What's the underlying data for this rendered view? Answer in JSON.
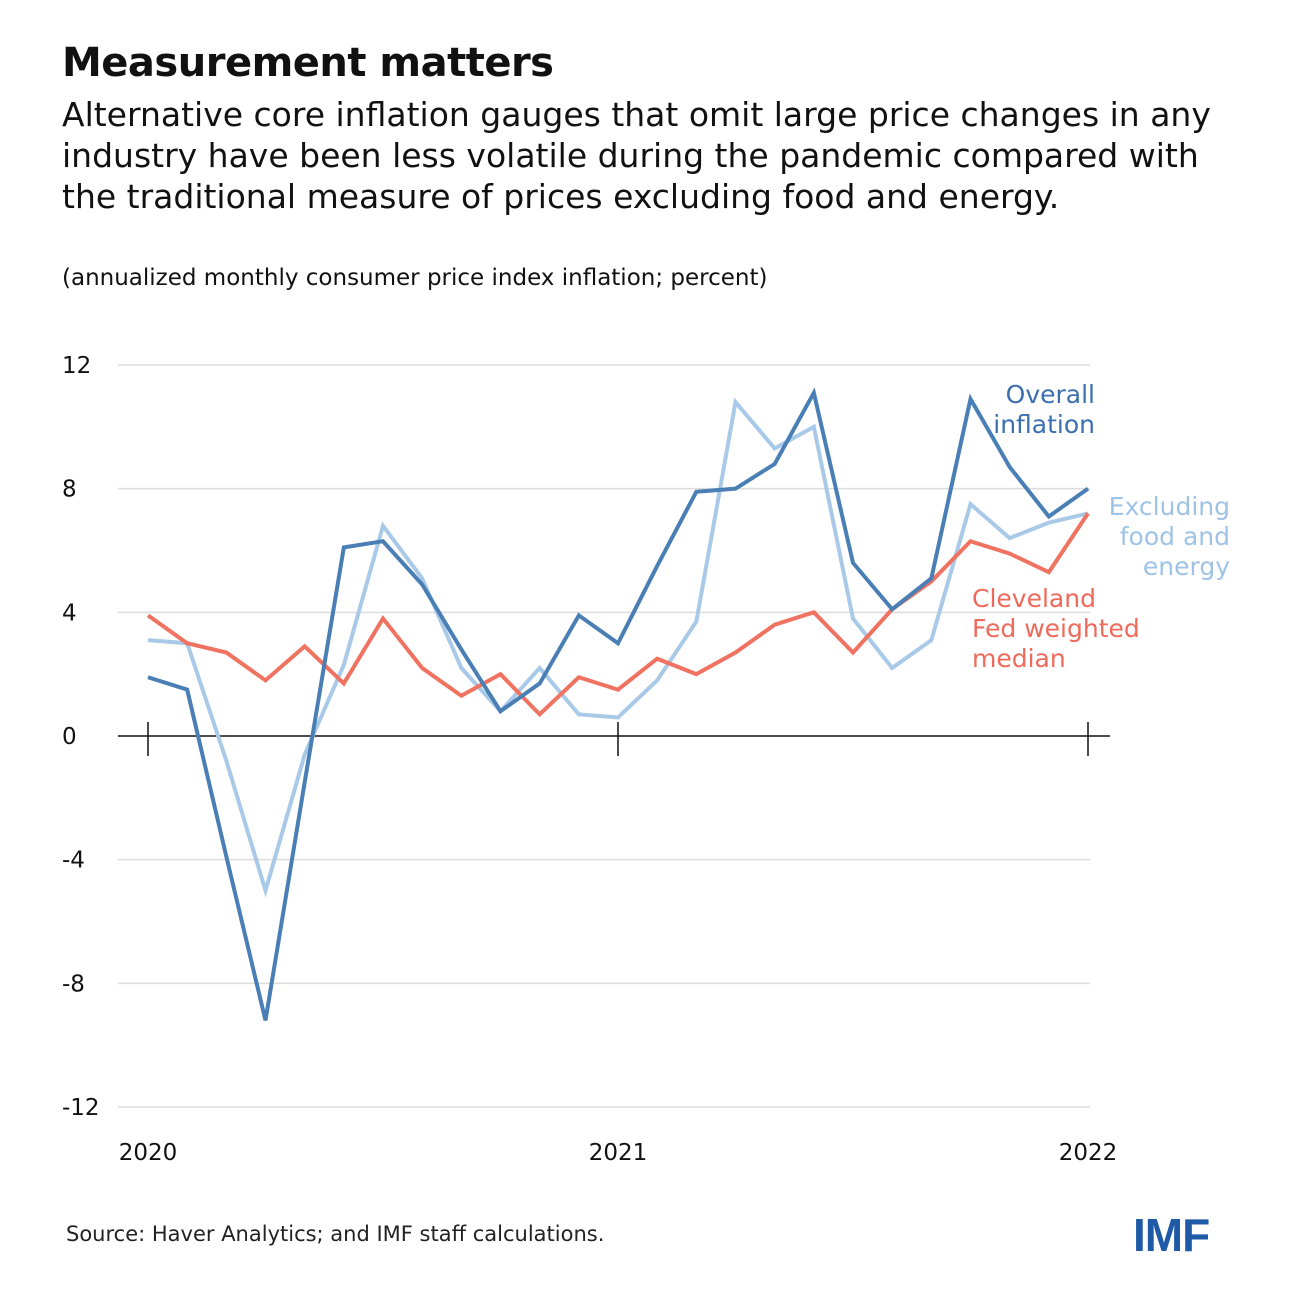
{
  "title": "Measurement matters",
  "subtitle": "Alternative core inflation gauges that omit large price changes in any industry have been less volatile during the pandemic compared with the traditional measure of prices excluding food and energy.",
  "units": "(annualized monthly consumer price index inflation; percent)",
  "source": "Source: Haver Analytics; and IMF staff calculations.",
  "logo": "IMF",
  "chart_data": {
    "type": "line",
    "title": "Measurement matters",
    "xlabel": "",
    "ylabel": "",
    "ylim": [
      -12,
      12
    ],
    "yticks": [
      "12",
      "8",
      "4",
      "0",
      "-4",
      "-8",
      "-12"
    ],
    "xticks": [
      "2020",
      "2021",
      "2022"
    ],
    "grid": true,
    "x": [
      "2020-01",
      "2020-02",
      "2020-03",
      "2020-04",
      "2020-05",
      "2020-06",
      "2020-07",
      "2020-08",
      "2020-09",
      "2020-10",
      "2020-11",
      "2020-12",
      "2021-01",
      "2021-02",
      "2021-03",
      "2021-04",
      "2021-05",
      "2021-06",
      "2021-07",
      "2021-08",
      "2021-09",
      "2021-10",
      "2021-11",
      "2021-12",
      "2022-01"
    ],
    "series": [
      {
        "name": "Overall inflation",
        "label_lines": [
          "Overall",
          "inflation"
        ],
        "color": "#4a7fb6",
        "values": [
          1.9,
          1.5,
          -3.9,
          -9.2,
          -1.5,
          6.1,
          6.3,
          4.9,
          2.8,
          0.8,
          1.7,
          3.9,
          3.0,
          5.5,
          7.9,
          8.0,
          8.8,
          11.1,
          5.6,
          4.1,
          5.1,
          10.9,
          8.7,
          7.1,
          8.0
        ]
      },
      {
        "name": "Excluding food and energy",
        "label_lines": [
          "Excluding",
          "food and",
          "energy"
        ],
        "color": "#a8c9e8",
        "values": [
          3.1,
          3.0,
          -0.8,
          -5.0,
          -0.6,
          2.3,
          6.8,
          5.1,
          2.2,
          0.8,
          2.2,
          0.7,
          0.6,
          1.8,
          3.7,
          10.8,
          9.3,
          10.0,
          3.8,
          2.2,
          3.1,
          7.5,
          6.4,
          6.9,
          7.2
        ]
      },
      {
        "name": "Cleveland Fed weighted median",
        "label_lines": [
          "Cleveland",
          "Fed weighted",
          "median"
        ],
        "color": "#f07261",
        "values": [
          3.9,
          3.0,
          2.7,
          1.8,
          2.9,
          1.7,
          3.8,
          2.2,
          1.3,
          2.0,
          0.7,
          1.9,
          1.5,
          2.5,
          2.0,
          2.7,
          3.6,
          4.0,
          2.7,
          4.1,
          5.0,
          6.3,
          5.9,
          5.3,
          7.2
        ]
      }
    ]
  }
}
